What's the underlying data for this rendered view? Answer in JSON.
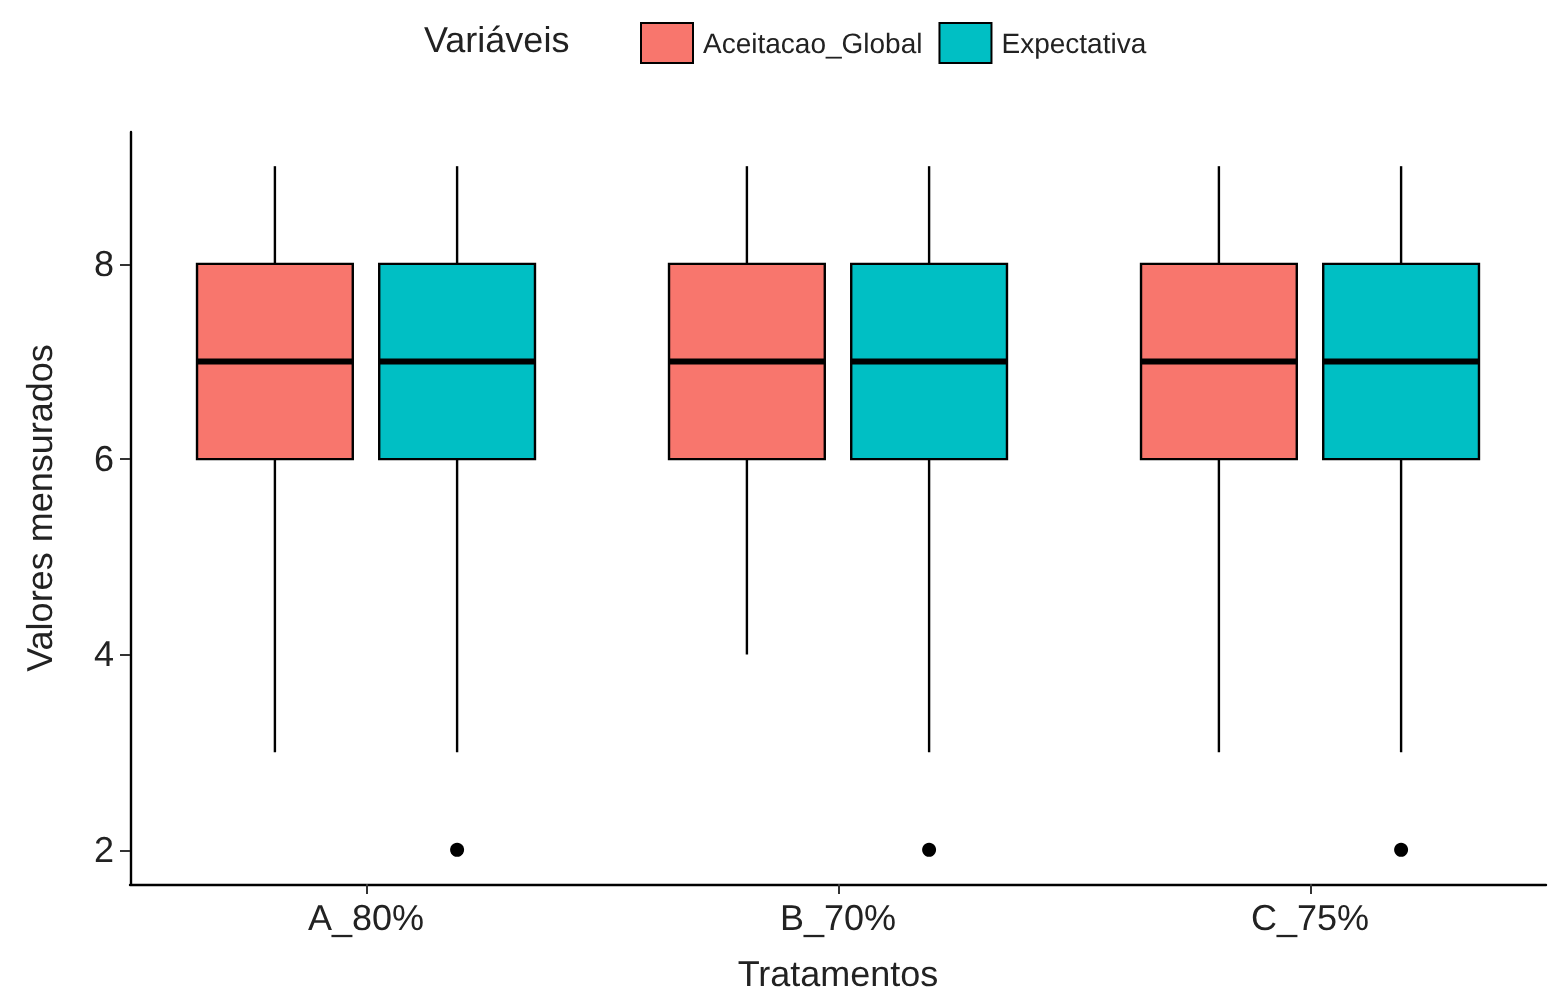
{
  "chart_data": {
    "type": "box",
    "xlabel": "Tratamentos",
    "ylabel": "Valores mensurados",
    "legend_title": "Variáveis",
    "legend": "top",
    "grid": false,
    "categories": [
      "A_80%",
      "B_70%",
      "C_75%"
    ],
    "ylim": [
      1.65,
      9.35
    ],
    "yticks": [
      2,
      4,
      6,
      8
    ],
    "series": [
      {
        "name": "Aceitacao_Global",
        "color": "#f8766d",
        "boxes": [
          {
            "low": 3,
            "q1": 6,
            "median": 7,
            "q3": 8,
            "high": 9
          },
          {
            "low": 4,
            "q1": 6,
            "median": 7,
            "q3": 8,
            "high": 9
          },
          {
            "low": 3,
            "q1": 6,
            "median": 7,
            "q3": 8,
            "high": 9
          }
        ]
      },
      {
        "name": "Expectativa",
        "color": "#00bfc4",
        "boxes": [
          {
            "low": 3,
            "q1": 6,
            "median": 7,
            "q3": 8,
            "high": 9,
            "outliers": [
              2
            ]
          },
          {
            "low": 3,
            "q1": 6,
            "median": 7,
            "q3": 8,
            "high": 9,
            "outliers": [
              2
            ]
          },
          {
            "low": 3,
            "q1": 6,
            "median": 7,
            "q3": 8,
            "high": 9,
            "outliers": [
              2
            ]
          }
        ]
      }
    ]
  }
}
